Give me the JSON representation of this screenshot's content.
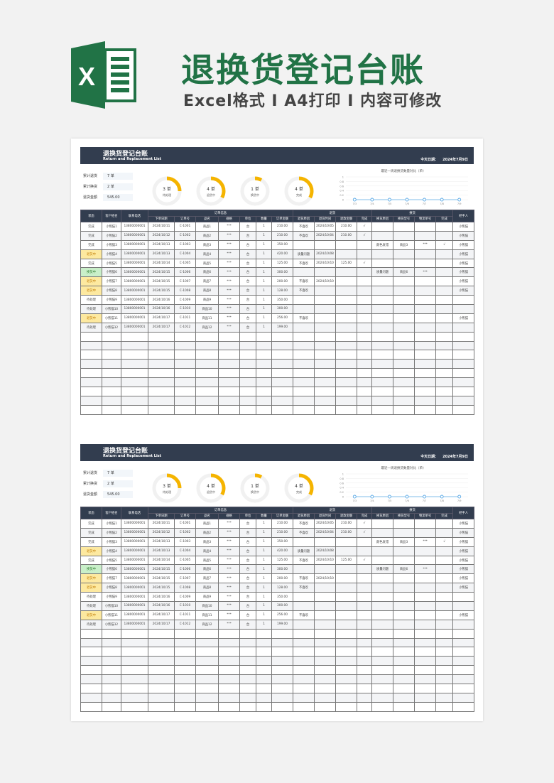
{
  "banner": {
    "title": "退换货登记台账",
    "subtitle": "Excel格式 I A4打印 I 内容可修改",
    "logo_letter": "X",
    "brand_color": "#217346"
  },
  "sheet": {
    "title": "退换货登记台账",
    "title_en": "Return and Replacement List",
    "date_label": "今天日期：",
    "date_value": "2024年7月9日",
    "stats": [
      {
        "label": "累计退货",
        "value": "7 单"
      },
      {
        "label": "累计换货",
        "value": "2 单"
      },
      {
        "label": "退货金额",
        "value": "545.00"
      }
    ],
    "donuts": [
      {
        "num": "3 单",
        "label": "待处理",
        "fraction": 0.25
      },
      {
        "num": "4 单",
        "label": "退货中",
        "fraction": 0.333
      },
      {
        "num": "1 单",
        "label": "换货中",
        "fraction": 0.083
      },
      {
        "num": "4 单",
        "label": "完成",
        "fraction": 0.333
      }
    ],
    "donut_color": "#f5b400",
    "chart_data": {
      "type": "line",
      "title": "最近一周退换货数量对比（单）",
      "categories": [
        "7/3",
        "7/4",
        "7/5",
        "7/6",
        "7/7",
        "7/8",
        "7/9"
      ],
      "values": [
        0,
        0,
        0,
        0,
        0,
        0,
        0
      ],
      "yticks": [
        "1",
        "0.8",
        "0.6",
        "0.4",
        "0.2",
        "0"
      ],
      "ylim": [
        0,
        1
      ],
      "grid": true,
      "color": "#5aa9e6"
    },
    "group_headers": {
      "status": "状态",
      "customer": "客户姓名",
      "phone": "联系电话",
      "order": "订单信息",
      "return": "退货",
      "exchange": "换货",
      "handler": "经手人"
    },
    "sub_headers": [
      "下单日期",
      "订单号",
      "品名",
      "规格",
      "单位",
      "数量",
      "订单金额",
      "退货原因",
      "退货时间",
      "退款金额",
      "完成",
      "换货原因",
      "换货型号",
      "物流单号",
      "完成"
    ],
    "rows": [
      [
        "完成",
        "小熊猫1",
        "13800000001",
        "2024/10/11",
        "C-1001",
        "商品1",
        "***",
        "台",
        "1",
        "210.00",
        "不喜欢",
        "2024/10/05",
        "210.00",
        "√",
        "",
        "",
        "",
        "",
        "小熊猫"
      ],
      [
        "完成",
        "小熊猫2",
        "13800000001",
        "2024/10/12",
        "C-1002",
        "商品2",
        "***",
        "台",
        "1",
        "210.00",
        "不喜欢",
        "2024/10/04",
        "210.00",
        "√",
        "",
        "",
        "",
        "",
        "小熊猫"
      ],
      [
        "完成",
        "小熊猫3",
        "13800000001",
        "2024/10/13",
        "C-1003",
        "商品3",
        "***",
        "台",
        "1",
        "350.00",
        "",
        "",
        "",
        "",
        "颜色发错",
        "商品3",
        "***",
        "√",
        "小熊猫"
      ],
      [
        "退货中",
        "小熊猫4",
        "13800000001",
        "2024/10/13",
        "C-1004",
        "商品4",
        "***",
        "台",
        "1",
        "420.00",
        "质量问题",
        "2024/10/08",
        "",
        "",
        "",
        "",
        "",
        "",
        "小熊猫"
      ],
      [
        "完成",
        "小熊猫5",
        "13800000001",
        "2024/10/14",
        "C-1005",
        "商品5",
        "***",
        "台",
        "1",
        "125.00",
        "不喜欢",
        "2024/10/10",
        "125.00",
        "√",
        "",
        "",
        "",
        "",
        "小熊猫"
      ],
      [
        "换货中",
        "小熊猫6",
        "13800000001",
        "2024/10/15",
        "C-1006",
        "商品6",
        "***",
        "台",
        "1",
        "300.00",
        "",
        "",
        "",
        "",
        "质量问题",
        "商品6",
        "***",
        "",
        "小熊猫"
      ],
      [
        "退货中",
        "小熊猫7",
        "13800000001",
        "2024/10/15",
        "C-1007",
        "商品7",
        "***",
        "台",
        "1",
        "200.00",
        "不喜欢",
        "2024/10/10",
        "",
        "",
        "",
        "",
        "",
        "",
        "小熊猫"
      ],
      [
        "退货中",
        "小熊猫8",
        "13800000001",
        "2024/10/15",
        "C-1008",
        "商品8",
        "***",
        "台",
        "1",
        "128.00",
        "不喜欢",
        "",
        "",
        "",
        "",
        "",
        "",
        "",
        "小熊猫"
      ],
      [
        "待处理",
        "小熊猫9",
        "13800000001",
        "2024/10/16",
        "C-1009",
        "商品9",
        "***",
        "台",
        "1",
        "350.00",
        "",
        "",
        "",
        "",
        "",
        "",
        "",
        "",
        ""
      ],
      [
        "待处理",
        "小熊猫10",
        "13800000001",
        "2024/10/16",
        "C-1010",
        "商品10",
        "***",
        "台",
        "1",
        "300.00",
        "",
        "",
        "",
        "",
        "",
        "",
        "",
        "",
        ""
      ],
      [
        "退货中",
        "小熊猫11",
        "13800000001",
        "2024/10/17",
        "C-1011",
        "商品11",
        "***",
        "台",
        "1",
        "256.00",
        "不喜欢",
        "",
        "",
        "",
        "",
        "",
        "",
        "",
        "小熊猫"
      ],
      [
        "待处理",
        "小熊猫12",
        "13800000001",
        "2024/10/17",
        "C-1012",
        "商品12",
        "***",
        "台",
        "1",
        "199.00",
        "",
        "",
        "",
        "",
        "",
        "",
        "",
        "",
        ""
      ]
    ],
    "status_colors": {
      "退货中": "#fde9a0",
      "换货中": "#c9efc9"
    }
  }
}
